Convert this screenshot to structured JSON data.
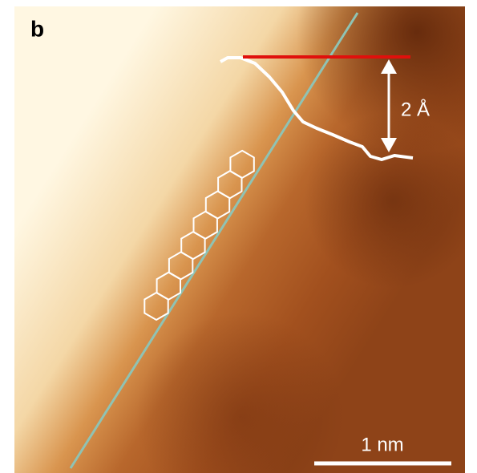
{
  "panel_label": "b",
  "height_label": "2 Å",
  "scale_bar_label": "1 nm"
}
